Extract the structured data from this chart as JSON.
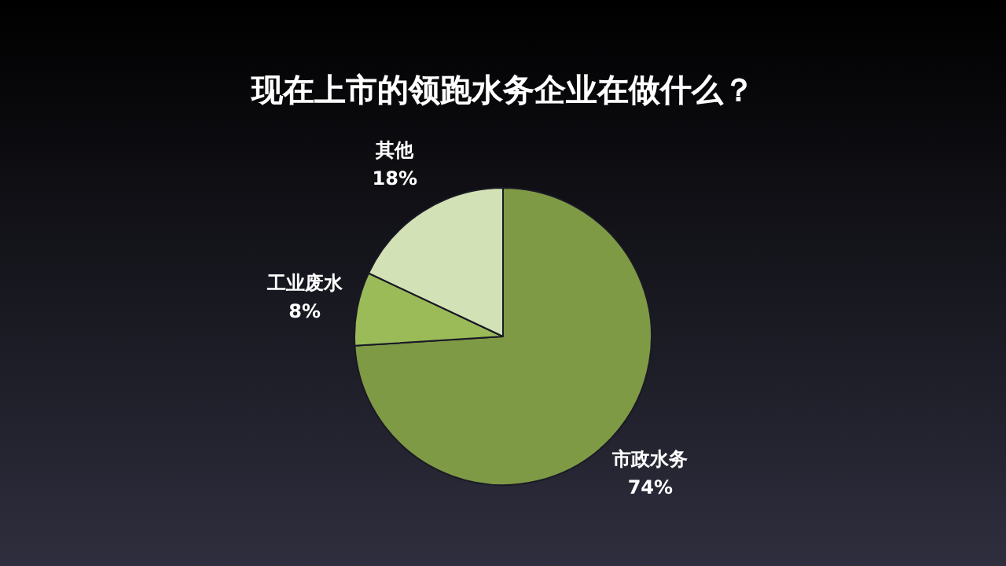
{
  "chart_data": {
    "type": "pie",
    "title": "现在上市的领跑水务企业在做什么？",
    "categories": [
      "市政水务",
      "工业废水",
      "其他"
    ],
    "values": [
      74,
      8,
      18
    ],
    "colors": [
      "#7f9a45",
      "#9bbb59",
      "#d3e2b6"
    ],
    "value_labels": [
      "74%",
      "8%",
      "18%"
    ],
    "legend": false
  }
}
